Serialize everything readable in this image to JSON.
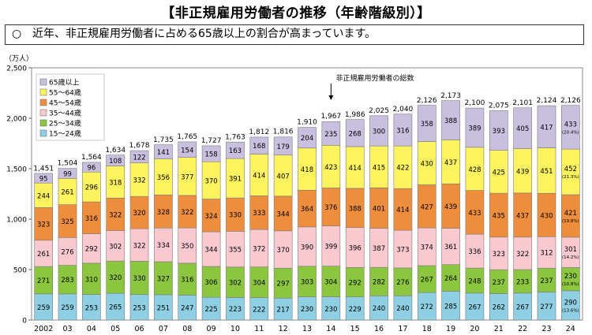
{
  "header": {
    "title": "【非正規雇用労働者の推移（年齢階級別）】",
    "subtitle_mark": "○",
    "subtitle": "近年、非正規雇用労働者に占める65歳以上の割合が高まっています。"
  },
  "chart_data": {
    "type": "bar",
    "stacked": true,
    "y_unit": "（万人）",
    "ylim": [
      0,
      2500
    ],
    "yticks": [
      "0",
      "500",
      "1,000",
      "1,500",
      "2,000",
      "2,500"
    ],
    "grid": false,
    "legend_position": "top-left",
    "annotation": "非正規雇用労働者の総数",
    "categories": [
      "2002",
      "03",
      "04",
      "05",
      "06",
      "07",
      "08",
      "09",
      "10",
      "11",
      "12",
      "13",
      "14",
      "15",
      "16",
      "17",
      "18",
      "19",
      "20",
      "21",
      "22",
      "23",
      "24"
    ],
    "totals": [
      1451,
      1504,
      1564,
      1634,
      1678,
      1735,
      1765,
      1727,
      1763,
      1812,
      1816,
      1910,
      1967,
      1986,
      2025,
      2040,
      2126,
      2173,
      2100,
      2075,
      2101,
      2124,
      2126
    ],
    "total_labels": [
      "1,451",
      "1,504",
      "1,564",
      "1,634",
      "1,678",
      "1,735",
      "1,765",
      "1,727",
      "1,763",
      "1,812",
      "1,816",
      "1,910",
      "1,967",
      "1,986",
      "2,025",
      "2,040",
      "2,126",
      "2,173",
      "2,100",
      "2,075",
      "2,101",
      "2,124",
      "2,126"
    ],
    "series": [
      {
        "name": "15～24歳",
        "color": "#8ecfe4",
        "values": [
          259,
          259,
          253,
          265,
          253,
          251,
          247,
          225,
          223,
          222,
          217,
          230,
          230,
          229,
          240,
          240,
          272,
          285,
          267,
          262,
          267,
          277,
          290
        ],
        "last_share": "(13.6%)"
      },
      {
        "name": "25～34歳",
        "color": "#8cc63f",
        "values": [
          271,
          283,
          310,
          320,
          330,
          327,
          316,
          306,
          302,
          304,
          297,
          303,
          304,
          292,
          282,
          276,
          267,
          264,
          248,
          237,
          233,
          237,
          230
        ],
        "last_share": "(10.8%)"
      },
      {
        "name": "35～44歳",
        "color": "#f9c9cf",
        "values": [
          261,
          276,
          292,
          302,
          322,
          334,
          350,
          344,
          355,
          372,
          370,
          390,
          399,
          396,
          387,
          373,
          374,
          361,
          336,
          323,
          322,
          312,
          301
        ],
        "last_share": "(14.2%)"
      },
      {
        "name": "45～54歳",
        "color": "#ee8e3d",
        "values": [
          323,
          325,
          316,
          322,
          320,
          328,
          322,
          324,
          330,
          333,
          344,
          364,
          376,
          388,
          401,
          414,
          427,
          439,
          433,
          435,
          437,
          430,
          421
        ],
        "last_share": "(19.8%)"
      },
      {
        "name": "55～64歳",
        "color": "#fdf35e",
        "values": [
          244,
          261,
          296,
          318,
          332,
          356,
          377,
          370,
          391,
          414,
          407,
          418,
          423,
          414,
          415,
          422,
          430,
          437,
          428,
          425,
          439,
          451,
          452
        ],
        "last_share": "(21.3%)"
      },
      {
        "name": "65歳以上",
        "color": "#c9c0e0",
        "values": [
          95,
          99,
          96,
          108,
          122,
          141,
          154,
          158,
          163,
          168,
          179,
          204,
          235,
          268,
          300,
          316,
          358,
          388,
          389,
          393,
          405,
          417,
          433
        ],
        "last_share": "(20.4%)"
      }
    ]
  }
}
